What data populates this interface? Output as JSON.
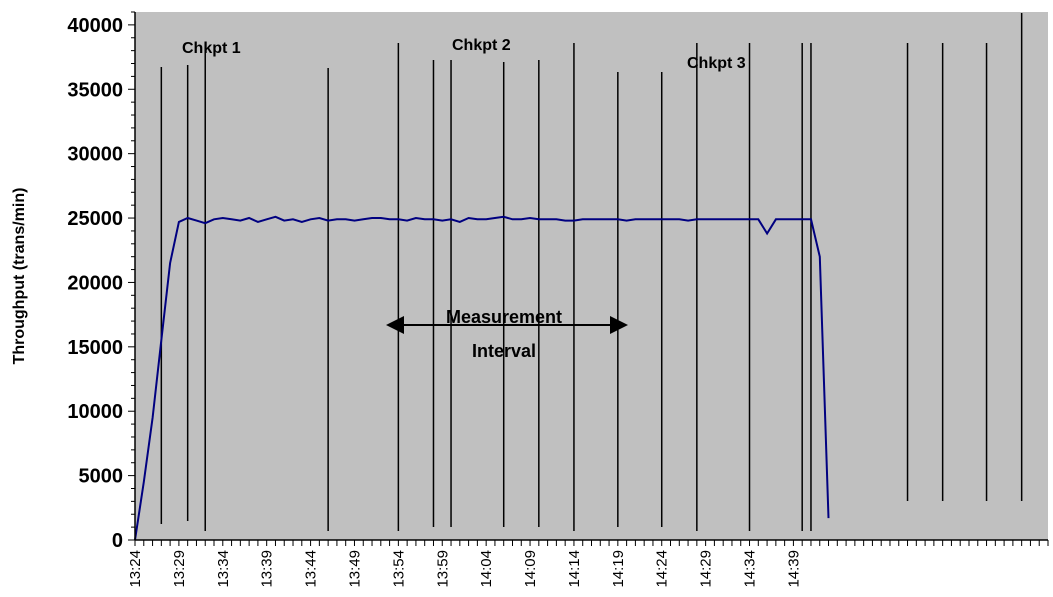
{
  "chart_data": {
    "type": "line",
    "ylabel": "Throughput (trans/min)",
    "xlabel": "",
    "ylim": [
      0,
      41000
    ],
    "yticks": [
      0,
      5000,
      10000,
      15000,
      20000,
      25000,
      30000,
      35000,
      40000
    ],
    "x_tick_labels": [
      "13:24",
      "13:29",
      "13:34",
      "13:39",
      "13:44",
      "13:49",
      "13:54",
      "13:59",
      "14:04",
      "14:09",
      "14:14",
      "14:19",
      "14:24",
      "14:29",
      "14:34",
      "14:39"
    ],
    "x_start_time": "13:24",
    "x_end_time": "15:08",
    "grid": false,
    "background_color": "#c0c0c0",
    "line_color": "#000080",
    "series": [
      {
        "name": "",
        "x": [
          "13:24",
          "13:25",
          "13:26",
          "13:27",
          "13:28",
          "13:29",
          "13:30",
          "13:31",
          "13:32",
          "13:33",
          "13:34",
          "13:35",
          "13:36",
          "13:37",
          "13:38",
          "13:39",
          "13:40",
          "13:41",
          "13:42",
          "13:43",
          "13:44",
          "13:45",
          "13:46",
          "13:47",
          "13:48",
          "13:49",
          "13:50",
          "13:51",
          "13:52",
          "13:53",
          "13:54",
          "13:55",
          "13:56",
          "13:57",
          "13:58",
          "13:59",
          "14:00",
          "14:01",
          "14:02",
          "14:03",
          "14:04",
          "14:05",
          "14:06",
          "14:07",
          "14:08",
          "14:09",
          "14:10",
          "14:11",
          "14:12",
          "14:13",
          "14:14",
          "14:15",
          "14:16",
          "14:17",
          "14:18",
          "14:19",
          "14:20",
          "14:21",
          "14:22",
          "14:23",
          "14:24",
          "14:25",
          "14:26",
          "14:27",
          "14:28",
          "14:29",
          "14:30",
          "14:31",
          "14:32",
          "14:33",
          "14:34",
          "14:35",
          "14:36",
          "14:37",
          "14:38",
          "14:39",
          "14:40",
          "14:41",
          "14:42",
          "14:43"
        ],
        "y": [
          0,
          4500,
          9500,
          15500,
          21500,
          24700,
          25000,
          24800,
          24600,
          24900,
          25000,
          24900,
          24800,
          25000,
          24700,
          24900,
          25100,
          24800,
          24900,
          24700,
          24900,
          25000,
          24800,
          24900,
          24900,
          24800,
          24900,
          25000,
          25000,
          24900,
          24900,
          24800,
          25000,
          24900,
          24900,
          24800,
          24900,
          24700,
          25000,
          24900,
          24900,
          25000,
          25100,
          24900,
          24900,
          25000,
          24900,
          24900,
          24900,
          24800,
          24800,
          24900,
          24900,
          24900,
          24900,
          24900,
          24800,
          24900,
          24900,
          24900,
          24900,
          24900,
          24900,
          24800,
          24900,
          24900,
          24900,
          24900,
          24900,
          24900,
          24900,
          24900,
          23800,
          24900,
          24900,
          24900,
          24900,
          24900,
          22000,
          1700
        ]
      }
    ],
    "vertical_markers": [
      "13:27",
      "13:30",
      "13:32",
      "13:46",
      "13:54",
      "13:58",
      "14:00",
      "14:06",
      "14:10",
      "14:14",
      "14:19",
      "14:24",
      "14:28",
      "14:34",
      "14:40",
      "14:41",
      "14:52",
      "14:56",
      "15:01",
      "15:05"
    ],
    "annotations": {
      "chkpt1": "Chkpt 1",
      "chkpt2": "Chkpt 2",
      "chkpt3": "Chkpt 3",
      "measurement_line1": "Measurement",
      "measurement_line2": "Interval"
    }
  }
}
